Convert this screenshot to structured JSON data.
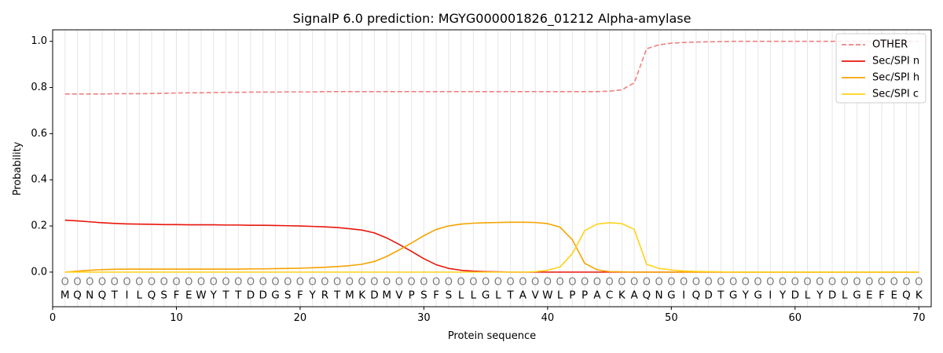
{
  "chart_data": {
    "type": "line",
    "title": "SignalP 6.0 prediction: MGYG000001826_01212 Alpha-amylase",
    "xlabel": "Protein sequence",
    "ylabel": "Probability",
    "xlim": [
      0,
      71
    ],
    "ylim": [
      -0.15,
      1.05
    ],
    "xticks": [
      0,
      10,
      20,
      30,
      40,
      50,
      60,
      70
    ],
    "yticks": [
      0.0,
      0.2,
      0.4,
      0.6,
      0.8,
      1.0
    ],
    "xtick_labels": [
      "0",
      "10",
      "20",
      "30",
      "40",
      "50",
      "60",
      "70"
    ],
    "ytick_labels": [
      "0.0",
      "0.2",
      "0.4",
      "0.6",
      "0.8",
      "1.0"
    ],
    "grid": "vertical lines at each residue",
    "legend_position": "top-right",
    "sequence": [
      "M",
      "Q",
      "N",
      "Q",
      "T",
      "I",
      "L",
      "Q",
      "S",
      "F",
      "E",
      "W",
      "Y",
      "T",
      "T",
      "D",
      "D",
      "G",
      "S",
      "F",
      "Y",
      "R",
      "T",
      "M",
      "K",
      "D",
      "M",
      "V",
      "P",
      "S",
      "F",
      "S",
      "L",
      "L",
      "G",
      "L",
      "T",
      "A",
      "V",
      "W",
      "L",
      "P",
      "P",
      "A",
      "C",
      "K",
      "A",
      "Q",
      "N",
      "G",
      "I",
      "Q",
      "D",
      "T",
      "G",
      "Y",
      "G",
      "I",
      "Y",
      "D",
      "L",
      "Y",
      "D",
      "L",
      "G",
      "E",
      "F",
      "E",
      "Q",
      "K"
    ],
    "residue_prediction": [
      "O",
      "O",
      "O",
      "O",
      "O",
      "O",
      "O",
      "O",
      "O",
      "O",
      "O",
      "O",
      "O",
      "O",
      "O",
      "O",
      "O",
      "O",
      "O",
      "O",
      "O",
      "O",
      "O",
      "O",
      "O",
      "O",
      "O",
      "O",
      "O",
      "O",
      "O",
      "O",
      "O",
      "O",
      "O",
      "O",
      "O",
      "O",
      "O",
      "O",
      "O",
      "O",
      "O",
      "O",
      "O",
      "O",
      "O",
      "O",
      "O",
      "O",
      "O",
      "O",
      "O",
      "O",
      "O",
      "O",
      "O",
      "O",
      "O",
      "O",
      "O",
      "O",
      "O",
      "O",
      "O",
      "O",
      "O",
      "O",
      "O",
      "O"
    ],
    "series": [
      {
        "name": "OTHER",
        "color": "#f08080",
        "style": "dashed",
        "values": [
          0.772,
          0.772,
          0.772,
          0.772,
          0.773,
          0.773,
          0.773,
          0.774,
          0.775,
          0.776,
          0.777,
          0.777,
          0.778,
          0.779,
          0.779,
          0.78,
          0.78,
          0.78,
          0.781,
          0.781,
          0.781,
          0.782,
          0.782,
          0.782,
          0.782,
          0.782,
          0.782,
          0.782,
          0.782,
          0.782,
          0.782,
          0.782,
          0.782,
          0.782,
          0.782,
          0.782,
          0.782,
          0.782,
          0.782,
          0.782,
          0.782,
          0.782,
          0.782,
          0.782,
          0.784,
          0.79,
          0.82,
          0.968,
          0.985,
          0.992,
          0.995,
          0.997,
          0.998,
          0.999,
          1.0,
          1.0,
          1.0,
          1.0,
          1.0,
          1.0,
          1.0,
          1.0,
          1.0,
          1.0,
          1.0,
          1.0,
          1.0,
          1.0,
          1.0,
          1.0
        ]
      },
      {
        "name": "Sec/SPI n",
        "color": "#e8160c",
        "style": "solid",
        "values": [
          0.225,
          0.222,
          0.218,
          0.214,
          0.211,
          0.209,
          0.208,
          0.207,
          0.206,
          0.206,
          0.205,
          0.205,
          0.205,
          0.204,
          0.204,
          0.203,
          0.203,
          0.202,
          0.201,
          0.2,
          0.198,
          0.196,
          0.193,
          0.188,
          0.182,
          0.17,
          0.148,
          0.12,
          0.09,
          0.058,
          0.032,
          0.016,
          0.008,
          0.004,
          0.002,
          0.001,
          0.0,
          0.0,
          0.0,
          0.0,
          0.0,
          0.0,
          0.0,
          0.0,
          0.0,
          0.0,
          0.0,
          0.0,
          0.0,
          0.0,
          0.0,
          0.0,
          0.0,
          0.0,
          0.0,
          0.0,
          0.0,
          0.0,
          0.0,
          0.0,
          0.0,
          0.0,
          0.0,
          0.0,
          0.0,
          0.0,
          0.0,
          0.0,
          0.0,
          0.0
        ]
      },
      {
        "name": "Sec/SPI h",
        "color": "#f5a300",
        "style": "solid",
        "values": [
          0.0,
          0.004,
          0.008,
          0.011,
          0.012,
          0.013,
          0.013,
          0.013,
          0.013,
          0.013,
          0.013,
          0.013,
          0.013,
          0.013,
          0.013,
          0.014,
          0.014,
          0.015,
          0.016,
          0.017,
          0.019,
          0.021,
          0.024,
          0.028,
          0.034,
          0.046,
          0.068,
          0.096,
          0.126,
          0.158,
          0.185,
          0.2,
          0.208,
          0.212,
          0.214,
          0.215,
          0.216,
          0.216,
          0.215,
          0.21,
          0.195,
          0.14,
          0.038,
          0.01,
          0.002,
          0.001,
          0.0,
          0.0,
          0.0,
          0.0,
          0.0,
          0.0,
          0.0,
          0.0,
          0.0,
          0.0,
          0.0,
          0.0,
          0.0,
          0.0,
          0.0,
          0.0,
          0.0,
          0.0,
          0.0,
          0.0,
          0.0,
          0.0,
          0.0,
          0.0
        ]
      },
      {
        "name": "Sec/SPI c",
        "color": "#ffd21a",
        "style": "solid",
        "values": [
          0.0,
          0.0,
          0.0,
          0.0,
          0.0,
          0.0,
          0.0,
          0.0,
          0.0,
          0.0,
          0.0,
          0.0,
          0.0,
          0.0,
          0.0,
          0.0,
          0.0,
          0.0,
          0.0,
          0.0,
          0.0,
          0.0,
          0.0,
          0.0,
          0.0,
          0.0,
          0.0,
          0.0,
          0.0,
          0.0,
          0.0,
          0.0,
          0.0,
          0.0,
          0.0,
          0.0,
          0.0,
          0.0,
          0.002,
          0.008,
          0.022,
          0.08,
          0.18,
          0.208,
          0.214,
          0.21,
          0.185,
          0.034,
          0.016,
          0.009,
          0.005,
          0.003,
          0.002,
          0.001,
          0.0,
          0.0,
          0.0,
          0.0,
          0.0,
          0.0,
          0.0,
          0.0,
          0.0,
          0.0,
          0.0,
          0.0,
          0.0,
          0.0,
          0.0,
          0.0
        ]
      }
    ]
  }
}
